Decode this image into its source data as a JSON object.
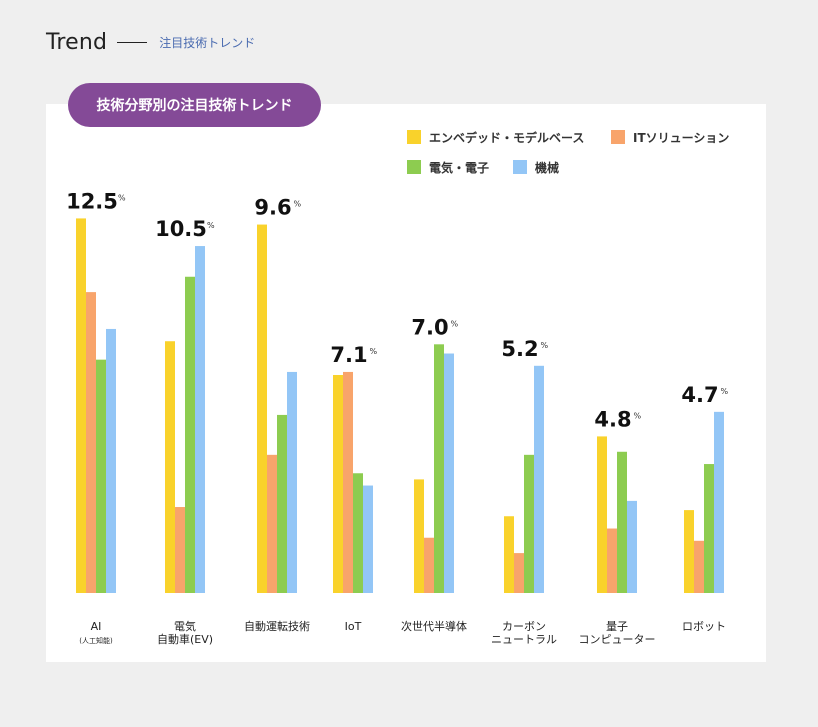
{
  "header": {
    "title": "Trend",
    "subtitle": "注目技術トレンド"
  },
  "colors": {
    "background": "#efefef",
    "card": "#ffffff",
    "pill": "#844a97"
  },
  "chart_data": {
    "type": "bar",
    "title": "技術分野別の注目技術トレンド",
    "legend_position": "top-right",
    "grid": false,
    "categories": [
      [
        "AI",
        "(人工知能)"
      ],
      [
        "電気",
        "自動車(EV)"
      ],
      [
        "自動運転技術"
      ],
      [
        "IoT"
      ],
      [
        "次世代半導体"
      ],
      [
        "カーボン",
        "ニュートラル"
      ],
      [
        "量子",
        "コンピューター"
      ],
      [
        "ロボット"
      ]
    ],
    "headline_values": [
      "12.5",
      "10.5",
      "9.6",
      "7.1",
      "7.0",
      "5.2",
      "4.8",
      "4.7"
    ],
    "headline_unit": "%",
    "ylim": [
      0,
      12.8
    ],
    "series": [
      {
        "name": "エンベデッド・モデルベース",
        "color": "#f9d22b",
        "values": [
          12.2,
          8.2,
          12.0,
          7.1,
          3.7,
          2.5,
          5.1,
          2.7
        ]
      },
      {
        "name": "ITソリューション",
        "color": "#f8a46b",
        "values": [
          9.8,
          2.8,
          4.5,
          7.2,
          1.8,
          1.3,
          2.1,
          1.7
        ]
      },
      {
        "name": "電気・電子",
        "color": "#8dcc50",
        "values": [
          7.6,
          10.3,
          5.8,
          3.9,
          8.1,
          4.5,
          4.6,
          4.2
        ]
      },
      {
        "name": "機械",
        "color": "#93c6f6",
        "values": [
          8.6,
          11.3,
          7.2,
          3.5,
          7.8,
          7.4,
          3.0,
          5.9
        ]
      }
    ]
  }
}
